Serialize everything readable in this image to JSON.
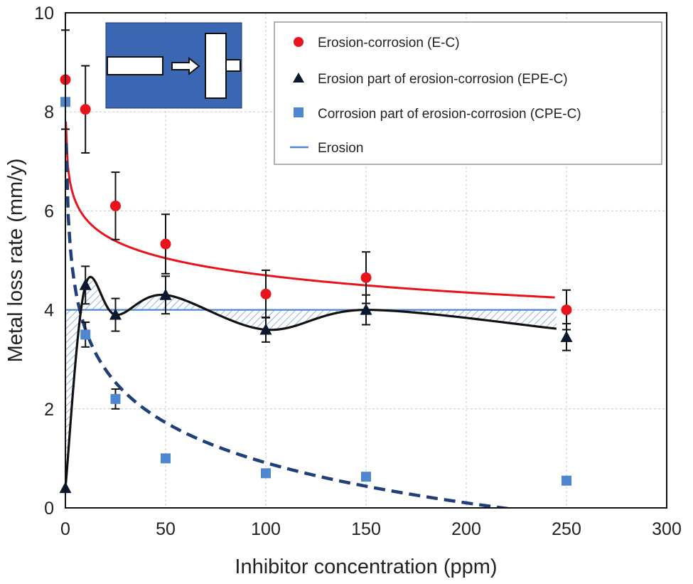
{
  "chart_data": {
    "type": "scatter",
    "title": "",
    "xlabel": "Inhibitor concentration (ppm)",
    "ylabel": "Metal loss rate (mm/y)",
    "xlim": [
      0,
      300
    ],
    "ylim": [
      0,
      10
    ],
    "x_ticks": [
      0,
      50,
      100,
      150,
      200,
      250,
      300
    ],
    "y_ticks": [
      0,
      2,
      4,
      6,
      8,
      10
    ],
    "grid": "dashed",
    "legend_position": "top-right",
    "series": [
      {
        "name": "Erosion-corrosion (E-C)",
        "marker": "circle",
        "color": "#e8141c",
        "x": [
          0,
          10,
          25,
          50,
          100,
          150,
          250
        ],
        "y": [
          8.65,
          8.05,
          6.1,
          5.33,
          4.32,
          4.65,
          4.0
        ],
        "error": [
          1.0,
          0.88,
          0.68,
          0.6,
          0.48,
          0.52,
          0.4
        ],
        "trend": "log fit",
        "trend_color": "#e8141c"
      },
      {
        "name": "Erosion part of erosion-corrosion (EPE-C)",
        "marker": "triangle",
        "color": "#0a1930",
        "x": [
          0,
          10,
          25,
          50,
          100,
          150,
          250
        ],
        "y": [
          0.4,
          4.5,
          3.9,
          4.3,
          3.6,
          4.0,
          3.45
        ],
        "error": [
          0.0,
          0.38,
          0.33,
          0.38,
          0.25,
          0.3,
          0.27
        ],
        "trend": "smoothed",
        "trend_color": "#111111"
      },
      {
        "name": "Corrosion part of erosion-corrosion (CPE-C)",
        "marker": "square",
        "color": "#4f86d0",
        "x": [
          0,
          10,
          25,
          50,
          100,
          150,
          250
        ],
        "y": [
          8.2,
          3.5,
          2.2,
          1.0,
          0.7,
          0.63,
          0.55
        ],
        "error": [
          0,
          0.25,
          0.2,
          0,
          0,
          0,
          0
        ],
        "trend": "log fit, dashed",
        "trend_color": "#1f3f78"
      },
      {
        "name": "Erosion",
        "marker": "line",
        "color": "#4f86d0",
        "y_constant": 4.0,
        "x_range": [
          0,
          245
        ]
      }
    ],
    "inset": {
      "background": "#3a66b2",
      "description_icon": "jet-impingement-icon"
    }
  }
}
